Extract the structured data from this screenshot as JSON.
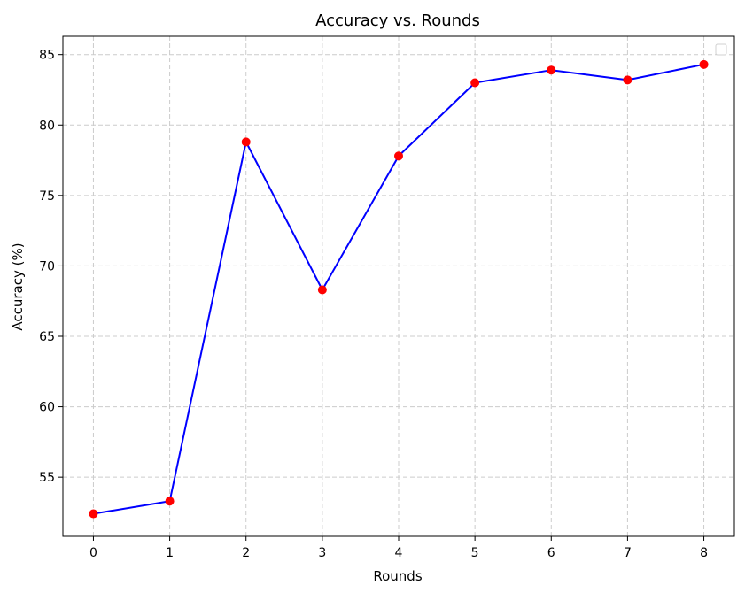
{
  "chart_data": {
    "type": "line",
    "title": "Accuracy vs. Rounds",
    "xlabel": "Rounds",
    "ylabel": "Accuracy (%)",
    "x": [
      0,
      1,
      2,
      3,
      4,
      5,
      6,
      7,
      8
    ],
    "series": [
      {
        "values": [
          52.4,
          53.3,
          78.8,
          68.3,
          77.8,
          83.0,
          83.9,
          83.2,
          84.3
        ],
        "line_color": "#0000ff",
        "marker_color": "#ff0000",
        "marker": "circle"
      }
    ],
    "x_ticks": [
      "0",
      "1",
      "2",
      "3",
      "4",
      "5",
      "6",
      "7",
      "8"
    ],
    "y_ticks": [
      "55",
      "60",
      "65",
      "70",
      "75",
      "80",
      "85"
    ],
    "xlim": [
      -0.4,
      8.4
    ],
    "ylim": [
      50.8,
      86.3
    ],
    "grid": true,
    "grid_style": "dashed",
    "legend": {
      "placement": "top-right",
      "entries": []
    }
  }
}
